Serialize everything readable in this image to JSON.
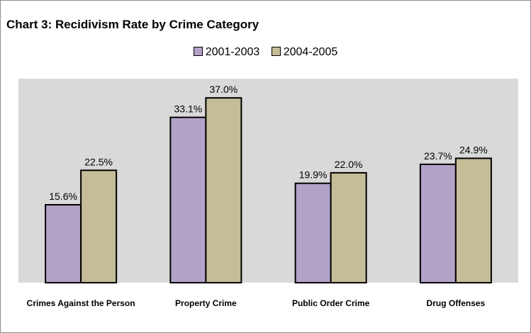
{
  "chart_data": {
    "type": "bar",
    "title": "Chart 3:  Recidivism Rate by Crime Category",
    "categories": [
      "Crimes Against the Person",
      "Property Crime",
      "Public Order Crime",
      "Drug Offenses"
    ],
    "series": [
      {
        "name": "2001-2003",
        "values": [
          15.6,
          33.1,
          19.9,
          23.7
        ],
        "labels": [
          "15.6%",
          "33.1%",
          "19.9%",
          "23.7%"
        ],
        "color": "#b3a2c7"
      },
      {
        "name": "2004-2005",
        "values": [
          22.5,
          37.0,
          22.0,
          24.9
        ],
        "labels": [
          "22.5%",
          "37.0%",
          "22.0%",
          "24.9%"
        ],
        "color": "#c4bd97"
      }
    ],
    "xlabel": "",
    "ylabel": "",
    "ylim": [
      0,
      40
    ],
    "grid": false,
    "legend": "top-center",
    "colors": {
      "plot_background": "#d9d9d9",
      "bar_border": "#000000"
    }
  }
}
